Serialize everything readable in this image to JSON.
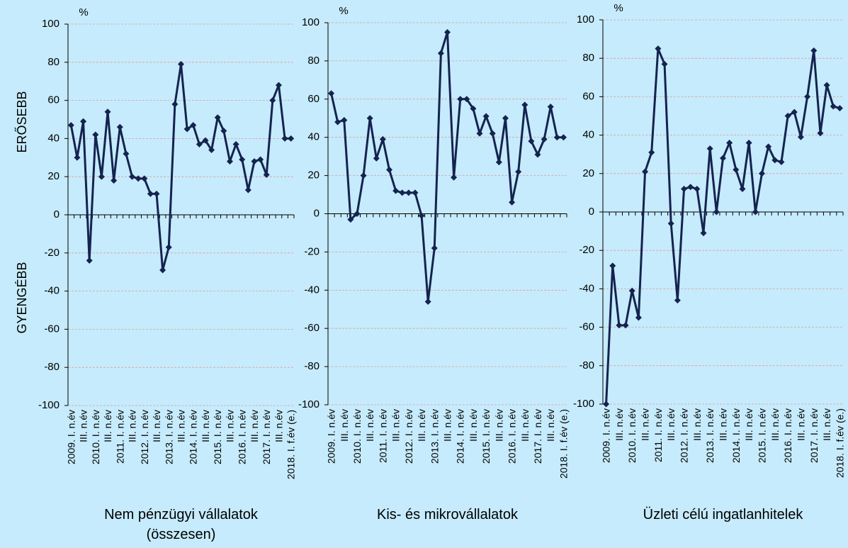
{
  "side_labels": {
    "upper": "ERŐSEBB",
    "lower": "GYENGÉBB"
  },
  "chart_data": [
    {
      "type": "line",
      "title": "Nem pénzügyi vállalatok (összesen)",
      "ylabel": "%",
      "categories": [
        "2009. I. n.év",
        null,
        "III. n.év",
        null,
        "2010. I. n.év",
        null,
        "III. n.év",
        null,
        "2011. I. n.év",
        null,
        "III. n.év",
        null,
        "2012. I. n.év",
        null,
        "III. n.év",
        null,
        "2013. I. n.év",
        null,
        "III. n.év",
        null,
        "2014. I. n.év",
        null,
        "III. n.év",
        null,
        "2015. I. n.év",
        null,
        "III. n.év",
        null,
        "2016. I. n.év",
        null,
        "III. n.év",
        null,
        "2017. I. n.év",
        null,
        "III. n.év",
        null,
        "2018. I. f.év (e.)"
      ],
      "series": [
        {
          "color": "#14234f",
          "values": [
            47,
            30,
            49,
            -24,
            42,
            20,
            54,
            18,
            46,
            32,
            20,
            19,
            19,
            11,
            11,
            -29,
            -17,
            58,
            79,
            45,
            47,
            37,
            39,
            34,
            51,
            44,
            28,
            37,
            29,
            13,
            28,
            29,
            21,
            60,
            68,
            40,
            40
          ]
        }
      ],
      "ylim": [
        -100,
        100
      ],
      "yticks": [
        -100,
        -80,
        -60,
        -40,
        -20,
        0,
        20,
        40,
        60,
        80,
        100
      ],
      "grid": true
    },
    {
      "type": "line",
      "title": "Kis- és mikrovállalatok",
      "ylabel": "%",
      "categories": [
        "2009. I. n.év",
        null,
        "III. n.év",
        null,
        "2010. I. n.év",
        null,
        "III. n.év",
        null,
        "2011. I. n.év",
        null,
        "III. n.év",
        null,
        "2012. I. n.év",
        null,
        "III. n.év",
        null,
        "2013. I. n.év",
        null,
        "III. n.év",
        null,
        "2014. I. n.év",
        null,
        "III. n.év",
        null,
        "2015. I. n.év",
        null,
        "III. n.év",
        null,
        "2016. I. n.év",
        null,
        "III. n.év",
        null,
        "2017. I. n.év",
        null,
        "III. n.év",
        null,
        "2018. I. f.év (e.)"
      ],
      "series": [
        {
          "color": "#14234f",
          "values": [
            63,
            48,
            49,
            -3,
            0,
            20,
            50,
            29,
            39,
            23,
            12,
            11,
            11,
            11,
            -1,
            -46,
            -18,
            84,
            95,
            19,
            60,
            60,
            55,
            42,
            51,
            42,
            27,
            50,
            6,
            22,
            57,
            38,
            31,
            39,
            56,
            40,
            40
          ]
        }
      ],
      "ylim": [
        -100,
        100
      ],
      "yticks": [
        -100,
        -80,
        -60,
        -40,
        -20,
        0,
        20,
        40,
        60,
        80,
        100
      ],
      "grid": true
    },
    {
      "type": "line",
      "title": "Üzleti célú ingatlanhitelek",
      "ylabel": "%",
      "categories": [
        "2009. I. n.év",
        null,
        "III. n.év",
        null,
        "2010. I. n.év",
        null,
        "III. n.év",
        null,
        "2011. I. n.év",
        null,
        "III. n.év",
        null,
        "2012. I. n.év",
        null,
        "III. n.év",
        null,
        "2013. I. n.év",
        null,
        "III. n.év",
        null,
        "2014. I. n.év",
        null,
        "III. n.év",
        null,
        "2015. I. n.év",
        null,
        "III. n.év",
        null,
        "2016. I. n.év",
        null,
        "III. n.év",
        null,
        "2017. I. n.év",
        null,
        "III. n.év",
        null,
        "2018. I. f.év (e.)"
      ],
      "series": [
        {
          "color": "#14234f",
          "values": [
            -100,
            -28,
            -59,
            -59,
            -41,
            -55,
            21,
            31,
            85,
            77,
            -6,
            -46,
            12,
            13,
            12,
            -11,
            33,
            0,
            28,
            36,
            22,
            12,
            36,
            0,
            20,
            34,
            27,
            26,
            50,
            52,
            39,
            60,
            84,
            41,
            66,
            55,
            54
          ]
        }
      ],
      "ylim": [
        -100,
        100
      ],
      "yticks": [
        -100,
        -80,
        -60,
        -40,
        -20,
        0,
        20,
        40,
        60,
        80,
        100
      ],
      "grid": true
    }
  ]
}
